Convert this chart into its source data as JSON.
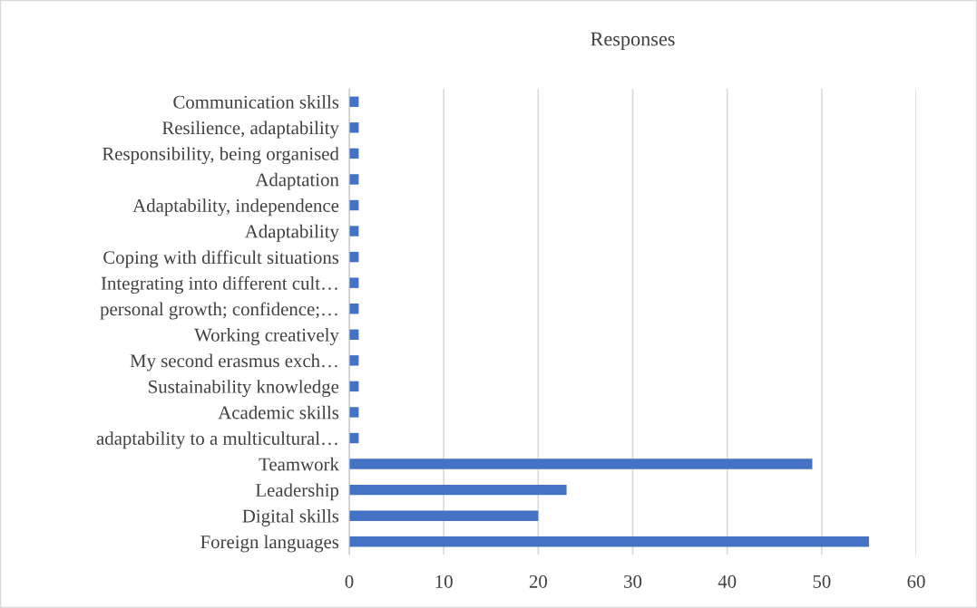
{
  "chart_data": {
    "type": "bar",
    "orientation": "horizontal",
    "title": "Responses",
    "categories": [
      "Communication skills",
      "Resilience, adaptability",
      "Responsibility, being organised",
      "Adaptation",
      "Adaptability, independence",
      "Adaptability",
      "Coping with difficult situations",
      "Integrating into different cult…",
      "personal growth; confidence;…",
      "Working creatively",
      "My second erasmus exch…",
      "Sustainability knowledge",
      "Academic skills",
      "adaptability to a multicultural…",
      "Teamwork",
      "Leadership",
      "Digital skills",
      "Foreign languages"
    ],
    "values": [
      1,
      1,
      1,
      1,
      1,
      1,
      1,
      1,
      1,
      1,
      1,
      1,
      1,
      1,
      49,
      23,
      20,
      55
    ],
    "color": "#4472c4",
    "xlim": [
      0,
      60
    ],
    "xticks": [
      0,
      10,
      20,
      30,
      40,
      50,
      60
    ],
    "grid": "x",
    "legend": false
  }
}
